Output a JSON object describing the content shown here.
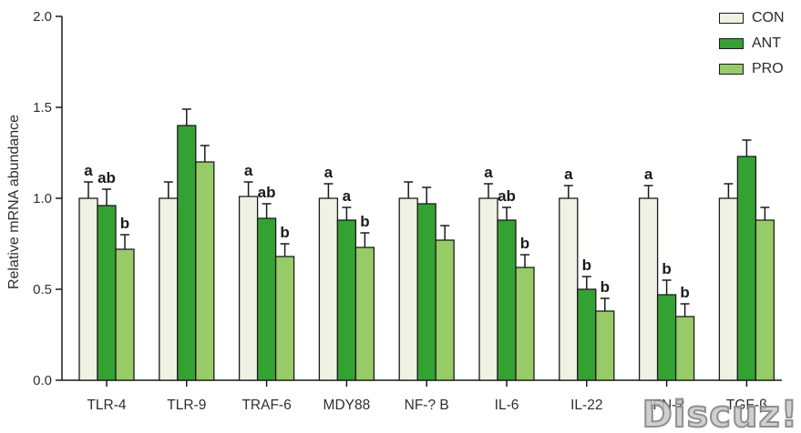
{
  "figure": {
    "watermark": "Discuz!"
  },
  "chart_data": {
    "type": "bar",
    "title": "",
    "xlabel": "",
    "ylabel": "Relative mRNA abundance",
    "ylim": [
      0,
      2
    ],
    "yticks": [
      0.0,
      0.5,
      1.0,
      1.5,
      2.0
    ],
    "grid": false,
    "legend_position": "top-right",
    "error_bars": "upper",
    "categories": [
      "TLR-4",
      "TLR-9",
      "TRAF-6",
      "MDY88",
      "NF-? B",
      "IL-6",
      "IL-22",
      "IFN-?",
      "TGF-β"
    ],
    "series": [
      {
        "name": "CON",
        "color": "#eff2e2",
        "values": [
          1.0,
          1.0,
          1.01,
          1.0,
          1.0,
          1.0,
          1.0,
          1.0,
          1.0
        ],
        "errors": [
          0.09,
          0.09,
          0.08,
          0.08,
          0.09,
          0.08,
          0.07,
          0.07,
          0.08
        ],
        "letters": [
          "a",
          "",
          "a",
          "a",
          "",
          "a",
          "a",
          "a",
          ""
        ]
      },
      {
        "name": "ANT",
        "color": "#34a233",
        "values": [
          0.96,
          1.4,
          0.89,
          0.88,
          0.97,
          0.88,
          0.5,
          0.47,
          1.23
        ],
        "errors": [
          0.09,
          0.09,
          0.08,
          0.07,
          0.09,
          0.07,
          0.07,
          0.08,
          0.09
        ],
        "letters": [
          "ab",
          "",
          "ab",
          "a",
          "",
          "ab",
          "b",
          "b",
          ""
        ]
      },
      {
        "name": "PRO",
        "color": "#97cb68",
        "values": [
          0.72,
          1.2,
          0.68,
          0.73,
          0.77,
          0.62,
          0.38,
          0.35,
          0.88
        ],
        "errors": [
          0.08,
          0.09,
          0.07,
          0.08,
          0.08,
          0.07,
          0.07,
          0.07,
          0.07
        ],
        "letters": [
          "b",
          "",
          "b",
          "b",
          "",
          "b",
          "b",
          "b",
          ""
        ]
      }
    ]
  }
}
